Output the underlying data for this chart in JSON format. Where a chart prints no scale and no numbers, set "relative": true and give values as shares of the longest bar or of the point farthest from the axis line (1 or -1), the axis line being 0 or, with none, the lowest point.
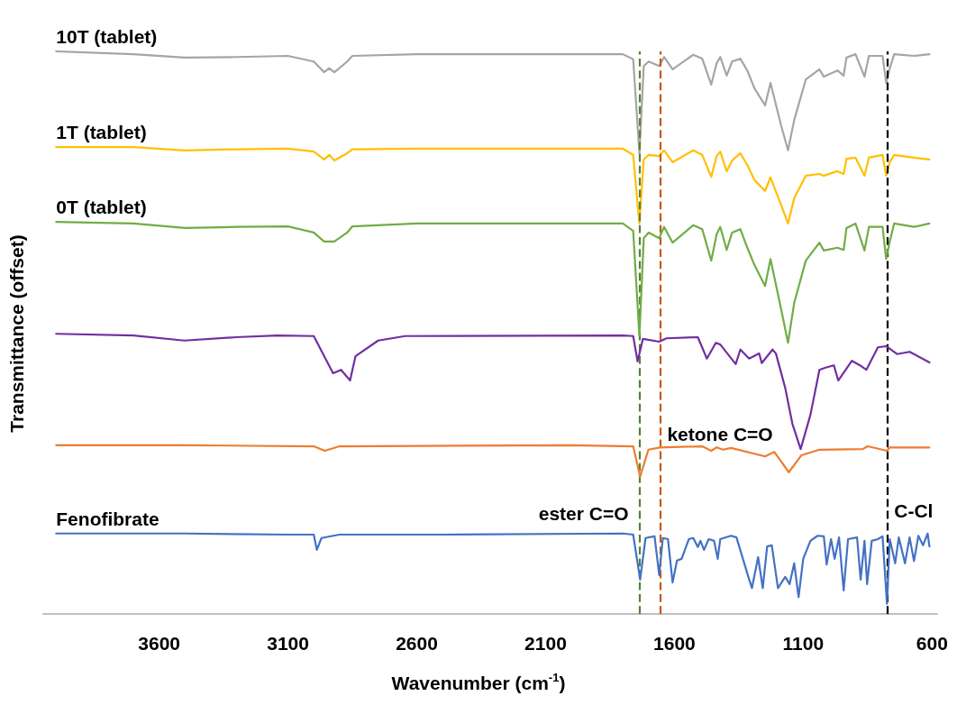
{
  "chart_data": {
    "type": "line",
    "relative": true,
    "xlabel": "Wavenumber (cm$^{-1}$)",
    "ylabel": "Transmittance (offset)",
    "xlim": [
      4050,
      580
    ],
    "xticks": [
      3600,
      3100,
      2600,
      2100,
      1600,
      1100,
      600
    ],
    "grid": false,
    "marker": "none",
    "line_style": "solid",
    "tick_labels": "x",
    "x": [
      4000,
      3700,
      3500,
      3300,
      3100,
      3000,
      2960,
      2940,
      2920,
      2870,
      2850,
      2600,
      2000,
      1800,
      1760,
      1736,
      1719,
      1700,
      1659,
      1640,
      1607,
      1527,
      1492,
      1457,
      1436,
      1422,
      1397,
      1376,
      1344,
      1317,
      1289,
      1248,
      1227,
      1185,
      1159,
      1135,
      1090,
      1037,
      1020,
      967,
      943,
      932,
      897,
      862,
      845,
      792,
      778,
      764,
      747,
      670,
      610
    ],
    "series": [
      {
        "name": "10T (tablet)",
        "color": "#a5a5a5",
        "values": [
          1.0,
          0.995,
          0.989,
          0.99,
          0.992,
          0.982,
          0.963,
          0.97,
          0.963,
          0.982,
          0.992,
          0.995,
          0.995,
          0.995,
          0.986,
          0.819,
          0.974,
          0.982,
          0.974,
          0.99,
          0.968,
          0.994,
          0.987,
          0.941,
          0.979,
          0.99,
          0.957,
          0.982,
          0.987,
          0.966,
          0.934,
          0.904,
          0.944,
          0.867,
          0.824,
          0.878,
          0.95,
          0.968,
          0.955,
          0.966,
          0.957,
          0.989,
          0.995,
          0.955,
          0.992,
          0.992,
          0.944,
          0.97,
          0.995,
          0.992,
          0.995
        ]
      },
      {
        "name": "1T (tablet)",
        "color": "#ffc000",
        "values": [
          0.83,
          0.83,
          0.824,
          0.826,
          0.827,
          0.822,
          0.808,
          0.816,
          0.806,
          0.819,
          0.826,
          0.827,
          0.827,
          0.827,
          0.816,
          0.694,
          0.808,
          0.816,
          0.814,
          0.824,
          0.803,
          0.824,
          0.816,
          0.777,
          0.814,
          0.822,
          0.787,
          0.806,
          0.819,
          0.798,
          0.771,
          0.752,
          0.776,
          0.726,
          0.694,
          0.739,
          0.779,
          0.782,
          0.779,
          0.787,
          0.782,
          0.809,
          0.811,
          0.779,
          0.811,
          0.816,
          0.779,
          0.803,
          0.816,
          0.811,
          0.808
        ]
      },
      {
        "name": "0T (tablet)",
        "color": "#70ad47",
        "values": [
          0.697,
          0.694,
          0.686,
          0.688,
          0.689,
          0.678,
          0.662,
          0.662,
          0.662,
          0.678,
          0.689,
          0.694,
          0.694,
          0.694,
          0.681,
          0.494,
          0.668,
          0.678,
          0.668,
          0.688,
          0.66,
          0.691,
          0.684,
          0.628,
          0.675,
          0.688,
          0.647,
          0.678,
          0.684,
          0.651,
          0.62,
          0.583,
          0.631,
          0.54,
          0.482,
          0.553,
          0.628,
          0.66,
          0.646,
          0.651,
          0.647,
          0.686,
          0.694,
          0.646,
          0.688,
          0.688,
          0.631,
          0.662,
          0.694,
          0.688,
          0.694
        ]
      },
      {
        "color": "#7030a0",
        "x": [
          4000,
          3700,
          3502,
          3300,
          3142,
          3000,
          2925,
          2894,
          2859,
          2838,
          2750,
          2645,
          1800,
          1760,
          1743,
          1722,
          1659,
          1631,
          1509,
          1474,
          1439,
          1422,
          1362,
          1344,
          1310,
          1271,
          1261,
          1219,
          1206,
          1170,
          1142,
          1110,
          1072,
          1037,
          1013,
          981,
          964,
          911,
          880,
          855,
          810,
          778,
          736,
          687,
          610
        ],
        "values": [
          0.498,
          0.495,
          0.486,
          0.492,
          0.495,
          0.494,
          0.428,
          0.434,
          0.415,
          0.458,
          0.486,
          0.494,
          0.495,
          0.494,
          0.449,
          0.489,
          0.484,
          0.49,
          0.492,
          0.454,
          0.482,
          0.479,
          0.444,
          0.47,
          0.454,
          0.463,
          0.446,
          0.47,
          0.463,
          0.402,
          0.338,
          0.293,
          0.354,
          0.434,
          0.438,
          0.442,
          0.415,
          0.45,
          0.442,
          0.434,
          0.474,
          0.476,
          0.462,
          0.466,
          0.447
        ]
      },
      {
        "color": "#ed7d31",
        "x": [
          4000,
          3500,
          3000,
          2957,
          2900,
          2000,
          1760,
          1733,
          1701,
          1656,
          1492,
          1457,
          1436,
          1411,
          1380,
          1248,
          1212,
          1156,
          1107,
          1037,
          869,
          850,
          775,
          764,
          610
        ],
        "values": [
          0.3,
          0.3,
          0.298,
          0.29,
          0.298,
          0.3,
          0.298,
          0.244,
          0.292,
          0.296,
          0.298,
          0.29,
          0.296,
          0.292,
          0.295,
          0.28,
          0.288,
          0.252,
          0.282,
          0.292,
          0.293,
          0.298,
          0.29,
          0.296,
          0.296
        ]
      },
      {
        "name": "Fenofibrate",
        "color": "#4472c4",
        "x": [
          4000,
          3500,
          3100,
          3000,
          2988,
          2970,
          2900,
          2500,
          1800,
          1760,
          1733,
          1712,
          1677,
          1659,
          1645,
          1625,
          1607,
          1590,
          1572,
          1544,
          1527,
          1509,
          1499,
          1485,
          1467,
          1446,
          1432,
          1422,
          1380,
          1359,
          1313,
          1299,
          1275,
          1257,
          1240,
          1222,
          1198,
          1170,
          1153,
          1135,
          1118,
          1100,
          1072,
          1044,
          1020,
          1009,
          992,
          978,
          961,
          943,
          926,
          891,
          877,
          862,
          852,
          834,
          810,
          792,
          775,
          764,
          743,
          729,
          705,
          687,
          670,
          653,
          635,
          617,
          610
        ],
        "values": [
          0.143,
          0.143,
          0.141,
          0.141,
          0.114,
          0.135,
          0.141,
          0.141,
          0.143,
          0.141,
          0.061,
          0.135,
          0.138,
          0.069,
          0.135,
          0.133,
          0.056,
          0.095,
          0.098,
          0.133,
          0.135,
          0.119,
          0.13,
          0.114,
          0.133,
          0.13,
          0.098,
          0.133,
          0.139,
          0.136,
          0.066,
          0.046,
          0.101,
          0.046,
          0.12,
          0.122,
          0.046,
          0.066,
          0.053,
          0.09,
          0.03,
          0.098,
          0.13,
          0.139,
          0.138,
          0.088,
          0.133,
          0.098,
          0.136,
          0.042,
          0.133,
          0.136,
          0.061,
          0.13,
          0.053,
          0.13,
          0.133,
          0.138,
          0.018,
          0.133,
          0.09,
          0.136,
          0.09,
          0.136,
          0.094,
          0.139,
          0.122,
          0.143,
          0.12
        ]
      }
    ],
    "ref_lines": [
      {
        "axis": "x",
        "value": 1736,
        "label": "ester C=O",
        "color": "#548235",
        "line_style": "dashed"
      },
      {
        "axis": "x",
        "value": 1656,
        "label": "ketone C=O",
        "color": "#c55a11",
        "line_style": "dashed"
      },
      {
        "axis": "x",
        "value": 775,
        "label": "C-Cl",
        "color": "#000000",
        "line_style": "dashed"
      }
    ]
  }
}
